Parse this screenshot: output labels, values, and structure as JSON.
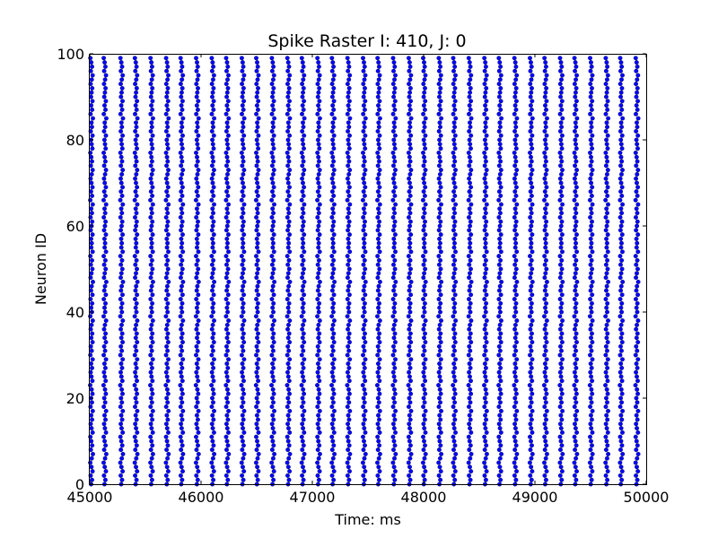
{
  "chart_data": {
    "type": "scatter",
    "title": "Spike Raster I: 410, J: 0",
    "xlabel": "Time: ms",
    "ylabel": "Neuron ID",
    "xlim": [
      45000,
      50000
    ],
    "ylim": [
      0,
      100
    ],
    "x_ticks": [
      45000,
      46000,
      47000,
      48000,
      49000,
      50000
    ],
    "x_tick_labels": [
      "45000",
      "46000",
      "47000",
      "48000",
      "49000",
      "50000"
    ],
    "y_ticks": [
      0,
      20,
      40,
      60,
      80,
      100
    ],
    "y_tick_labels": [
      "0",
      "20",
      "40",
      "60",
      "80",
      "100"
    ],
    "grid": false,
    "marker_color": "#0000ff",
    "marker_edge_color": "#000000",
    "marker": "circle",
    "series": [
      {
        "burst_times_ms": [
          45000,
          45120,
          45270,
          45400,
          45540,
          45680,
          45810,
          45950,
          46090,
          46220,
          46360,
          46490,
          46630,
          46770,
          46900,
          47040,
          47170,
          47310,
          47450,
          47580,
          47720,
          47860,
          47990,
          48130,
          48260,
          48400,
          48540,
          48670,
          48810,
          48950,
          49080,
          49220,
          49350,
          49490,
          49630,
          49760,
          49900
        ],
        "neuron_ids": [
          0,
          1,
          2,
          3,
          4,
          5,
          6,
          7,
          8,
          9,
          10,
          11,
          12,
          13,
          14,
          15,
          16,
          17,
          18,
          19,
          20,
          21,
          22,
          23,
          24,
          25,
          26,
          27,
          28,
          29,
          30,
          31,
          32,
          33,
          34,
          35,
          36,
          37,
          38,
          39,
          40,
          41,
          42,
          43,
          44,
          45,
          46,
          47,
          48,
          49,
          50,
          51,
          52,
          53,
          54,
          55,
          56,
          57,
          58,
          59,
          60,
          61,
          62,
          63,
          64,
          65,
          66,
          67,
          68,
          69,
          70,
          71,
          72,
          73,
          74,
          75,
          76,
          77,
          78,
          79,
          80,
          81,
          82,
          83,
          84,
          85,
          86,
          87,
          88,
          89,
          90,
          91,
          92,
          93,
          94,
          95,
          96,
          97,
          98,
          99
        ],
        "spike_offsets_ms": [
          12,
          20,
          8,
          25,
          15,
          5,
          18,
          28,
          10,
          22,
          14,
          6,
          26,
          16,
          9,
          21,
          13,
          27,
          7,
          19,
          11,
          24,
          17,
          4,
          23,
          15,
          8,
          20,
          12,
          26,
          6,
          18,
          10,
          25,
          14,
          22,
          9,
          16,
          27,
          5,
          19,
          13,
          21,
          7,
          24,
          11,
          17,
          28,
          8,
          15,
          23,
          10,
          20,
          6,
          26,
          14,
          18,
          12,
          25,
          9,
          16,
          22,
          7,
          19,
          13,
          27,
          5,
          21,
          11,
          24,
          15,
          8,
          18,
          26,
          10,
          20,
          14,
          6,
          23,
          17,
          12,
          25,
          9,
          19,
          15,
          28,
          7,
          21,
          13,
          24,
          11,
          16,
          22,
          8,
          18,
          26,
          10,
          20,
          14,
          6
        ]
      }
    ]
  }
}
